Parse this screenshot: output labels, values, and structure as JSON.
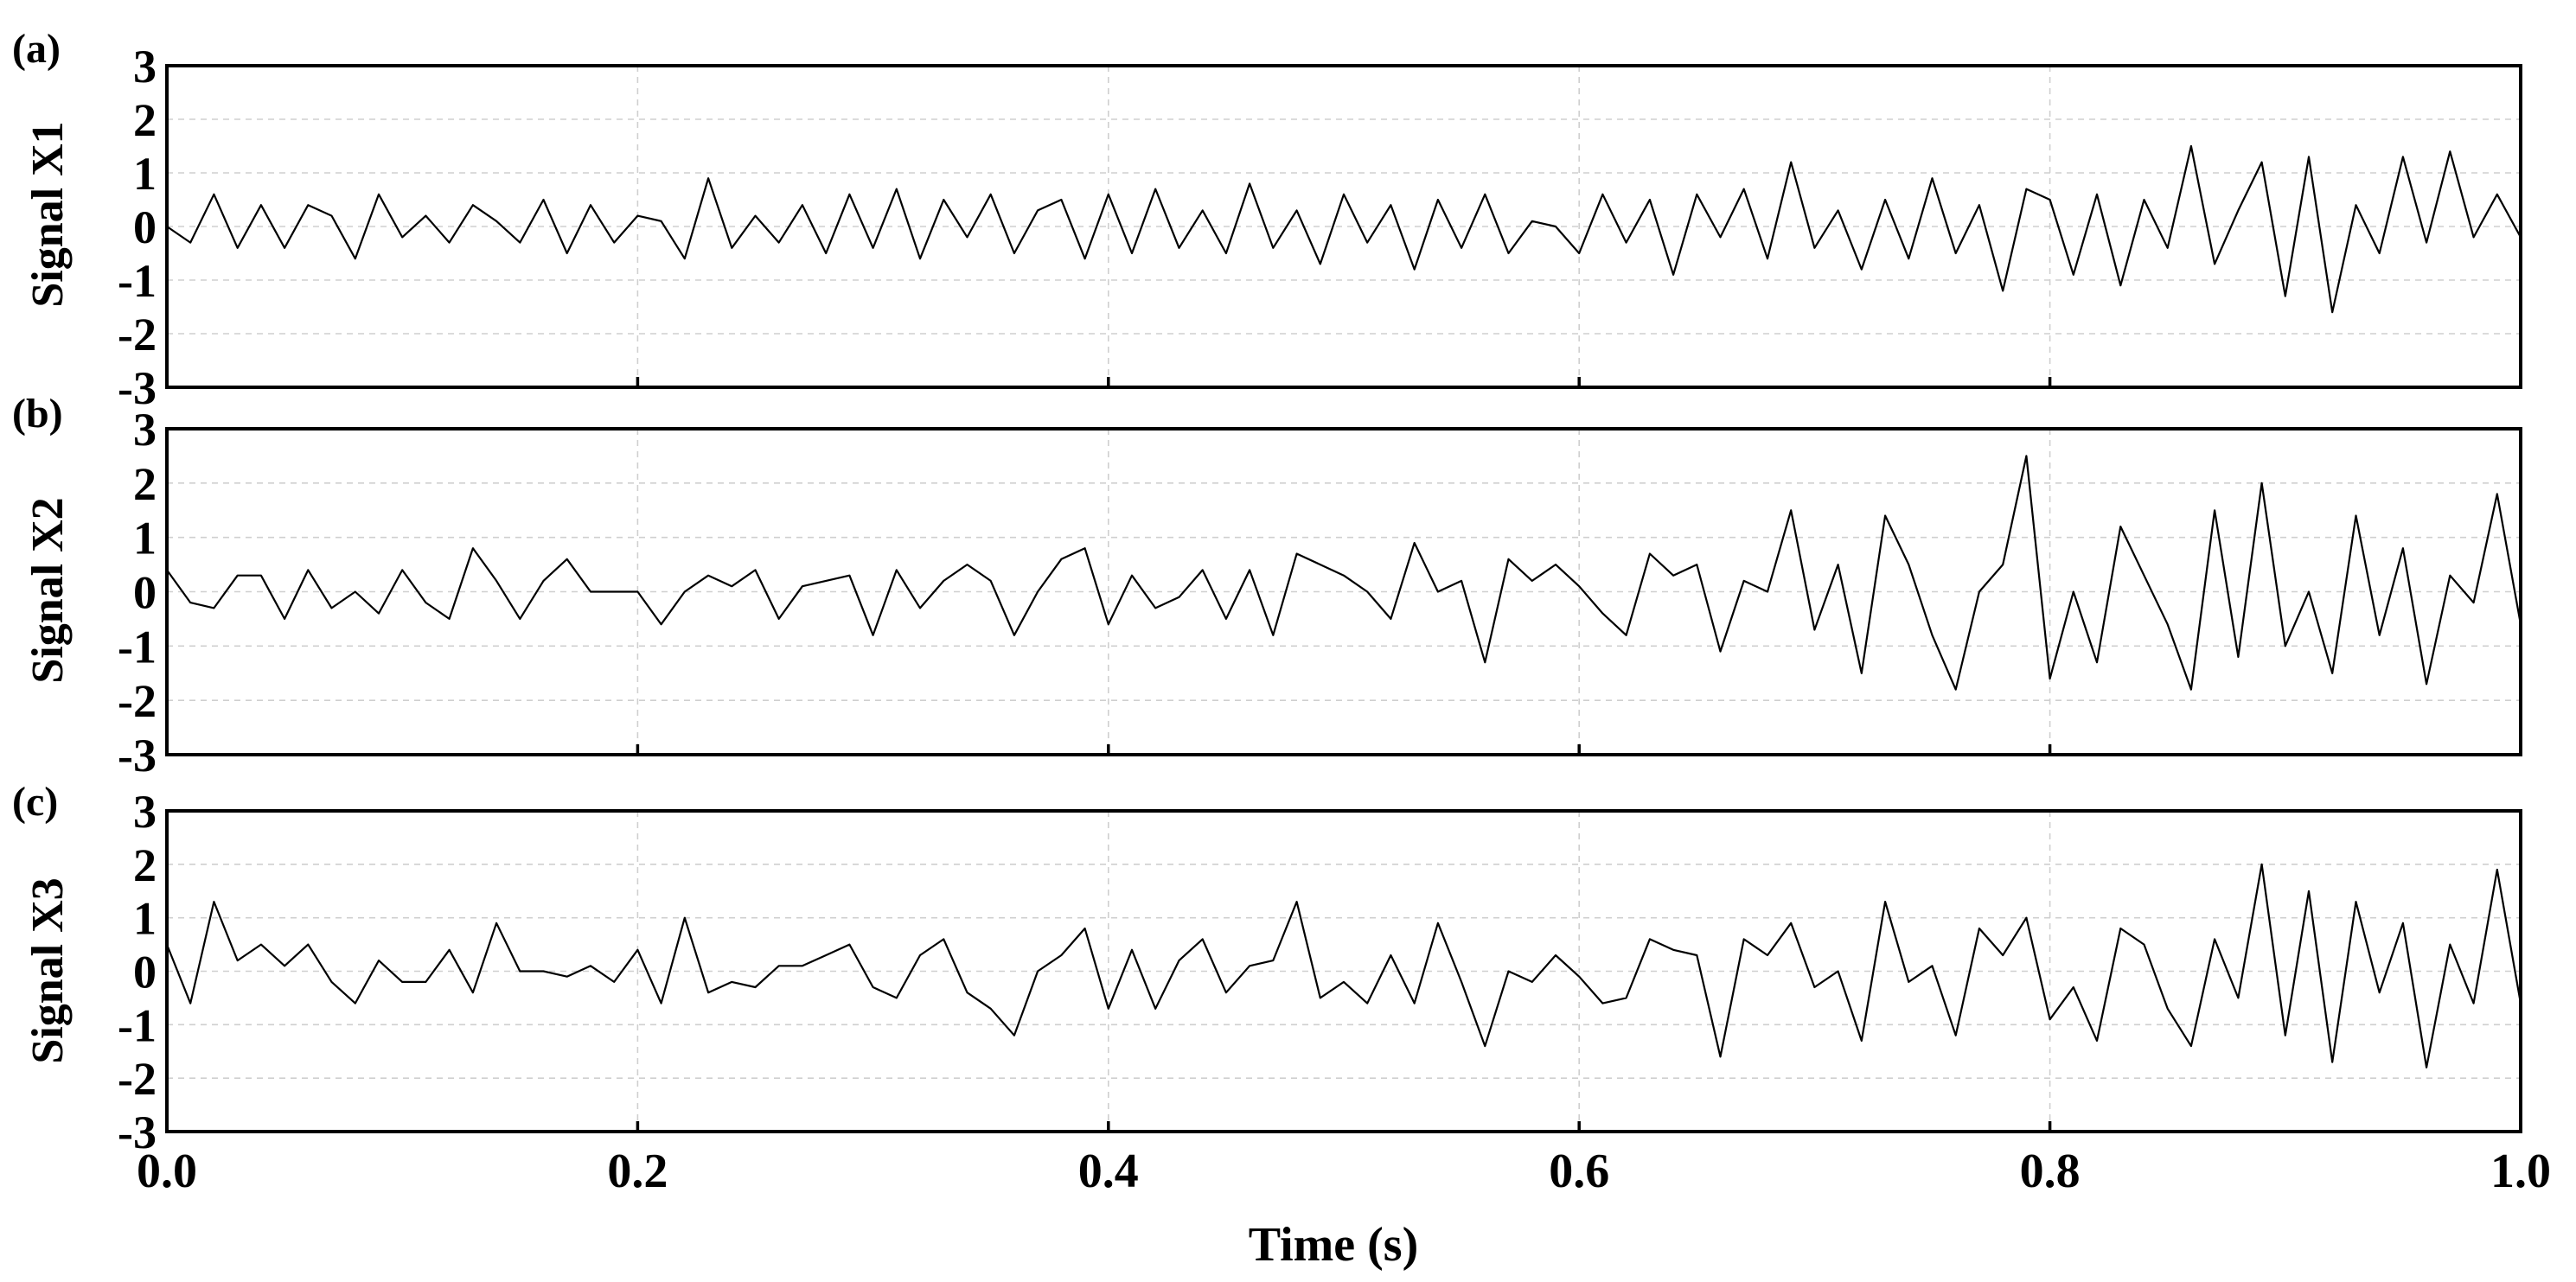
{
  "chart_data": [
    {
      "type": "line",
      "panel_label": "(a)",
      "ylabel": "Signal X1",
      "xlabel": "",
      "xlim": [
        0,
        1
      ],
      "ylim": [
        -3,
        3
      ],
      "yticks": [
        "3",
        "2",
        "1",
        "0",
        "-1",
        "-2",
        "-3"
      ],
      "grid": true,
      "series": [
        {
          "x": [
            0,
            0.01,
            0.02,
            0.03,
            0.04,
            0.05,
            0.06,
            0.07,
            0.08,
            0.09,
            0.1,
            0.11,
            0.12,
            0.13,
            0.14,
            0.15,
            0.16,
            0.17,
            0.18,
            0.19,
            0.2,
            0.21,
            0.22,
            0.23,
            0.24,
            0.25,
            0.26,
            0.27,
            0.28,
            0.29,
            0.3,
            0.31,
            0.32,
            0.33,
            0.34,
            0.35,
            0.36,
            0.37,
            0.38,
            0.39,
            0.4,
            0.41,
            0.42,
            0.43,
            0.44,
            0.45,
            0.46,
            0.47,
            0.48,
            0.49,
            0.5,
            0.51,
            0.52,
            0.53,
            0.54,
            0.55,
            0.56,
            0.57,
            0.58,
            0.59,
            0.6,
            0.61,
            0.62,
            0.63,
            0.64,
            0.65,
            0.66,
            0.67,
            0.68,
            0.69,
            0.7,
            0.71,
            0.72,
            0.73,
            0.74,
            0.75,
            0.76,
            0.77,
            0.78,
            0.79,
            0.8,
            0.81,
            0.82,
            0.83,
            0.84,
            0.85,
            0.86,
            0.87,
            0.88,
            0.89,
            0.9,
            0.91,
            0.92,
            0.93,
            0.94,
            0.95,
            0.96,
            0.97,
            0.98,
            0.99,
            1.0
          ],
          "values": [
            0.0,
            -0.3,
            0.6,
            -0.4,
            0.4,
            -0.4,
            0.4,
            0.2,
            -0.6,
            0.6,
            -0.2,
            0.2,
            -0.3,
            0.4,
            0.1,
            -0.3,
            0.5,
            -0.5,
            0.4,
            -0.3,
            0.2,
            0.1,
            -0.6,
            0.9,
            -0.4,
            0.2,
            -0.3,
            0.4,
            -0.5,
            0.6,
            -0.4,
            0.7,
            -0.6,
            0.5,
            -0.2,
            0.6,
            -0.5,
            0.3,
            0.5,
            -0.6,
            0.6,
            -0.5,
            0.7,
            -0.4,
            0.3,
            -0.5,
            0.8,
            -0.4,
            0.3,
            -0.7,
            0.6,
            -0.3,
            0.4,
            -0.8,
            0.5,
            -0.4,
            0.6,
            -0.5,
            0.1,
            0.0,
            -0.5,
            0.6,
            -0.3,
            0.5,
            -0.9,
            0.6,
            -0.2,
            0.7,
            -0.6,
            1.2,
            -0.4,
            0.3,
            -0.8,
            0.5,
            -0.6,
            0.9,
            -0.5,
            0.4,
            -1.2,
            0.7,
            0.5,
            -0.9,
            0.6,
            -1.1,
            0.5,
            -0.4,
            1.5,
            -0.7,
            0.3,
            1.2,
            -1.3,
            1.3,
            -1.6,
            0.4,
            -0.5,
            1.3,
            -0.3,
            1.4,
            -0.2,
            0.6,
            -0.2
          ]
        }
      ]
    },
    {
      "type": "line",
      "panel_label": "(b)",
      "ylabel": "Signal X2",
      "xlabel": "",
      "xlim": [
        0,
        1
      ],
      "ylim": [
        -3,
        3
      ],
      "yticks": [
        "3",
        "2",
        "1",
        "0",
        "-1",
        "-2",
        "-3"
      ],
      "grid": true,
      "series": [
        {
          "x": [
            0,
            0.01,
            0.02,
            0.03,
            0.04,
            0.05,
            0.06,
            0.07,
            0.08,
            0.09,
            0.1,
            0.11,
            0.12,
            0.13,
            0.14,
            0.15,
            0.16,
            0.17,
            0.18,
            0.19,
            0.2,
            0.21,
            0.22,
            0.23,
            0.24,
            0.25,
            0.26,
            0.27,
            0.28,
            0.29,
            0.3,
            0.31,
            0.32,
            0.33,
            0.34,
            0.35,
            0.36,
            0.37,
            0.38,
            0.39,
            0.4,
            0.41,
            0.42,
            0.43,
            0.44,
            0.45,
            0.46,
            0.47,
            0.48,
            0.49,
            0.5,
            0.51,
            0.52,
            0.53,
            0.54,
            0.55,
            0.56,
            0.57,
            0.58,
            0.59,
            0.6,
            0.61,
            0.62,
            0.63,
            0.64,
            0.65,
            0.66,
            0.67,
            0.68,
            0.69,
            0.7,
            0.71,
            0.72,
            0.73,
            0.74,
            0.75,
            0.76,
            0.77,
            0.78,
            0.79,
            0.8,
            0.81,
            0.82,
            0.83,
            0.84,
            0.85,
            0.86,
            0.87,
            0.88,
            0.89,
            0.9,
            0.91,
            0.92,
            0.93,
            0.94,
            0.95,
            0.96,
            0.97,
            0.98,
            0.99,
            1.0
          ],
          "values": [
            0.4,
            -0.2,
            -0.3,
            0.3,
            0.3,
            -0.5,
            0.4,
            -0.3,
            0.0,
            -0.4,
            0.4,
            -0.2,
            -0.5,
            0.8,
            0.2,
            -0.5,
            0.2,
            0.6,
            0.0,
            0.0,
            0.0,
            -0.6,
            0.0,
            0.3,
            0.1,
            0.4,
            -0.5,
            0.1,
            0.2,
            0.3,
            -0.8,
            0.4,
            -0.3,
            0.2,
            0.5,
            0.2,
            -0.8,
            0.0,
            0.6,
            0.8,
            -0.6,
            0.3,
            -0.3,
            -0.1,
            0.4,
            -0.5,
            0.4,
            -0.8,
            0.7,
            0.5,
            0.3,
            0.0,
            -0.5,
            0.9,
            0.0,
            0.2,
            -1.3,
            0.6,
            0.2,
            0.5,
            0.1,
            -0.4,
            -0.8,
            0.7,
            0.3,
            0.5,
            -1.1,
            0.2,
            0.0,
            1.5,
            -0.7,
            0.5,
            -1.5,
            1.4,
            0.5,
            -0.8,
            -1.8,
            0.0,
            0.5,
            2.5,
            -1.6,
            0.0,
            -1.3,
            1.2,
            0.3,
            -0.6,
            -1.8,
            1.5,
            -1.2,
            2.0,
            -1.0,
            0.0,
            -1.5,
            1.4,
            -0.8,
            0.8,
            -1.7,
            0.3,
            -0.2,
            1.8,
            -0.6
          ]
        }
      ]
    },
    {
      "type": "line",
      "panel_label": "(c)",
      "ylabel": "Signal X3",
      "xlabel": "Time (s)",
      "xlim": [
        0,
        1
      ],
      "ylim": [
        -3,
        3
      ],
      "xticks": [
        "0.0",
        "0.2",
        "0.4",
        "0.6",
        "0.8",
        "1.0"
      ],
      "yticks": [
        "3",
        "2",
        "1",
        "0",
        "-1",
        "-2",
        "-3"
      ],
      "grid": true,
      "series": [
        {
          "x": [
            0,
            0.01,
            0.02,
            0.03,
            0.04,
            0.05,
            0.06,
            0.07,
            0.08,
            0.09,
            0.1,
            0.11,
            0.12,
            0.13,
            0.14,
            0.15,
            0.16,
            0.17,
            0.18,
            0.19,
            0.2,
            0.21,
            0.22,
            0.23,
            0.24,
            0.25,
            0.26,
            0.27,
            0.28,
            0.29,
            0.3,
            0.31,
            0.32,
            0.33,
            0.34,
            0.35,
            0.36,
            0.37,
            0.38,
            0.39,
            0.4,
            0.41,
            0.42,
            0.43,
            0.44,
            0.45,
            0.46,
            0.47,
            0.48,
            0.49,
            0.5,
            0.51,
            0.52,
            0.53,
            0.54,
            0.55,
            0.56,
            0.57,
            0.58,
            0.59,
            0.6,
            0.61,
            0.62,
            0.63,
            0.64,
            0.65,
            0.66,
            0.67,
            0.68,
            0.69,
            0.7,
            0.71,
            0.72,
            0.73,
            0.74,
            0.75,
            0.76,
            0.77,
            0.78,
            0.79,
            0.8,
            0.81,
            0.82,
            0.83,
            0.84,
            0.85,
            0.86,
            0.87,
            0.88,
            0.89,
            0.9,
            0.91,
            0.92,
            0.93,
            0.94,
            0.95,
            0.96,
            0.97,
            0.98,
            0.99,
            1.0
          ],
          "values": [
            0.5,
            -0.6,
            1.3,
            0.2,
            0.5,
            0.1,
            0.5,
            -0.2,
            -0.6,
            0.2,
            -0.2,
            -0.2,
            0.4,
            -0.4,
            0.9,
            0.0,
            0.0,
            -0.1,
            0.1,
            -0.2,
            0.4,
            -0.6,
            1.0,
            -0.4,
            -0.2,
            -0.3,
            0.1,
            0.1,
            0.3,
            0.5,
            -0.3,
            -0.5,
            0.3,
            0.6,
            -0.4,
            -0.7,
            -1.2,
            0.0,
            0.3,
            0.8,
            -0.7,
            0.4,
            -0.7,
            0.2,
            0.6,
            -0.4,
            0.1,
            0.2,
            1.3,
            -0.5,
            -0.2,
            -0.6,
            0.3,
            -0.6,
            0.9,
            -0.2,
            -1.4,
            0.0,
            -0.2,
            0.3,
            -0.1,
            -0.6,
            -0.5,
            0.6,
            0.4,
            0.3,
            -1.6,
            0.6,
            0.3,
            0.9,
            -0.3,
            0.0,
            -1.3,
            1.3,
            -0.2,
            0.1,
            -1.2,
            0.8,
            0.3,
            1.0,
            -0.9,
            -0.3,
            -1.3,
            0.8,
            0.5,
            -0.7,
            -1.4,
            0.6,
            -0.5,
            2.0,
            -1.2,
            1.5,
            -1.7,
            1.3,
            -0.4,
            0.9,
            -1.8,
            0.5,
            -0.6,
            1.9,
            -0.6
          ]
        }
      ]
    }
  ]
}
